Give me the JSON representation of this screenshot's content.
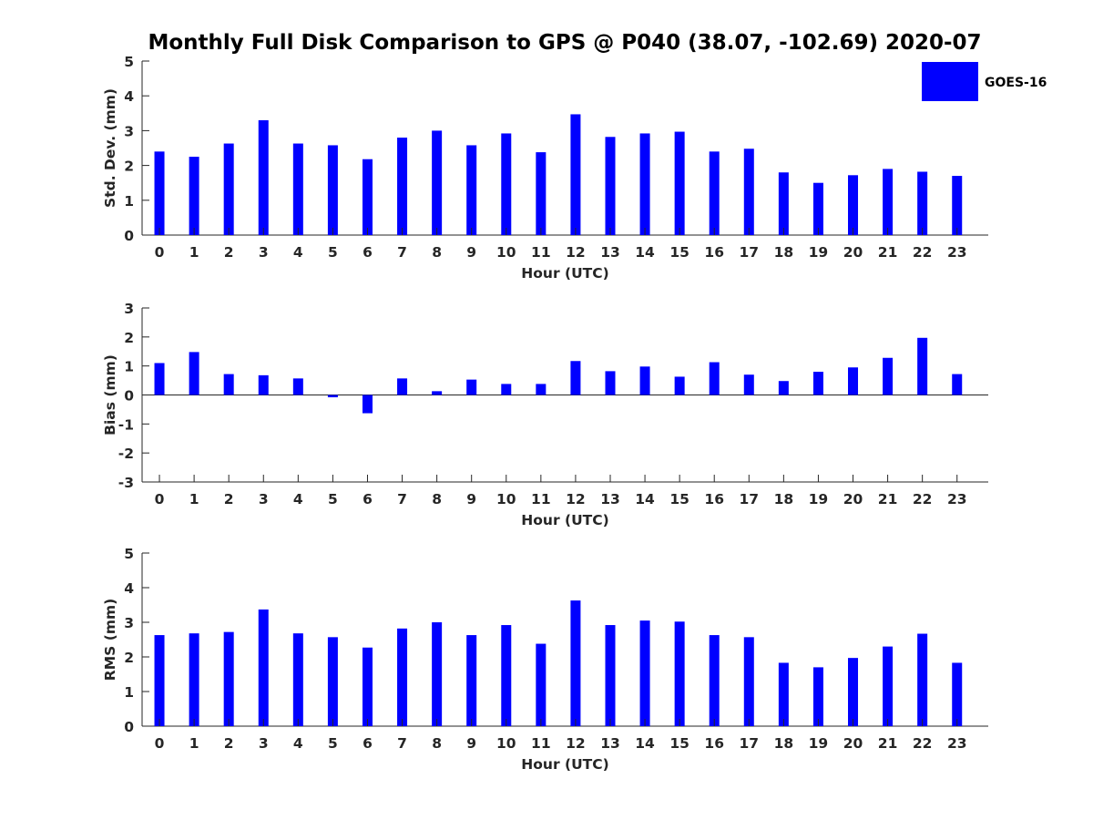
{
  "title": "Monthly Full Disk Comparison to GPS @ P040 (38.07, -102.69) 2020-07",
  "legend": {
    "label": "GOES-16",
    "color": "#0000ff"
  },
  "chart_data": [
    {
      "type": "bar",
      "xlabel": "Hour (UTC)",
      "ylabel": "Std. Dev. (mm)",
      "ylim": [
        0,
        5
      ],
      "yticks": [
        0,
        1,
        2,
        3,
        4,
        5
      ],
      "categories": [
        "0",
        "1",
        "2",
        "3",
        "4",
        "5",
        "6",
        "7",
        "8",
        "9",
        "10",
        "11",
        "12",
        "13",
        "14",
        "15",
        "16",
        "17",
        "18",
        "19",
        "20",
        "21",
        "22",
        "23"
      ],
      "series": [
        {
          "name": "GOES-16",
          "values": [
            2.4,
            2.25,
            2.63,
            3.3,
            2.63,
            2.58,
            2.18,
            2.8,
            3.0,
            2.58,
            2.92,
            2.38,
            3.47,
            2.82,
            2.92,
            2.97,
            2.4,
            2.48,
            1.8,
            1.5,
            1.72,
            1.9,
            1.82,
            1.7
          ]
        }
      ]
    },
    {
      "type": "bar",
      "xlabel": "Hour (UTC)",
      "ylabel": "Bias (mm)",
      "ylim": [
        -3,
        3
      ],
      "yticks": [
        -3,
        -2,
        -1,
        0,
        1,
        2,
        3
      ],
      "categories": [
        "0",
        "1",
        "2",
        "3",
        "4",
        "5",
        "6",
        "7",
        "8",
        "9",
        "10",
        "11",
        "12",
        "13",
        "14",
        "15",
        "16",
        "17",
        "18",
        "19",
        "20",
        "21",
        "22",
        "23"
      ],
      "series": [
        {
          "name": "GOES-16",
          "values": [
            1.1,
            1.48,
            0.72,
            0.68,
            0.57,
            -0.08,
            -0.63,
            0.57,
            0.13,
            0.53,
            0.38,
            0.38,
            1.17,
            0.82,
            0.98,
            0.63,
            1.13,
            0.7,
            0.48,
            0.8,
            0.95,
            1.28,
            1.97,
            0.72
          ]
        }
      ]
    },
    {
      "type": "bar",
      "xlabel": "Hour (UTC)",
      "ylabel": "RMS (mm)",
      "ylim": [
        0,
        5
      ],
      "yticks": [
        0,
        1,
        2,
        3,
        4,
        5
      ],
      "categories": [
        "0",
        "1",
        "2",
        "3",
        "4",
        "5",
        "6",
        "7",
        "8",
        "9",
        "10",
        "11",
        "12",
        "13",
        "14",
        "15",
        "16",
        "17",
        "18",
        "19",
        "20",
        "21",
        "22",
        "23"
      ],
      "series": [
        {
          "name": "GOES-16",
          "values": [
            2.63,
            2.68,
            2.72,
            3.37,
            2.68,
            2.57,
            2.27,
            2.82,
            3.0,
            2.63,
            2.92,
            2.38,
            3.63,
            2.92,
            3.05,
            3.02,
            2.63,
            2.57,
            1.83,
            1.7,
            1.97,
            2.3,
            2.67,
            1.83
          ]
        }
      ]
    }
  ]
}
